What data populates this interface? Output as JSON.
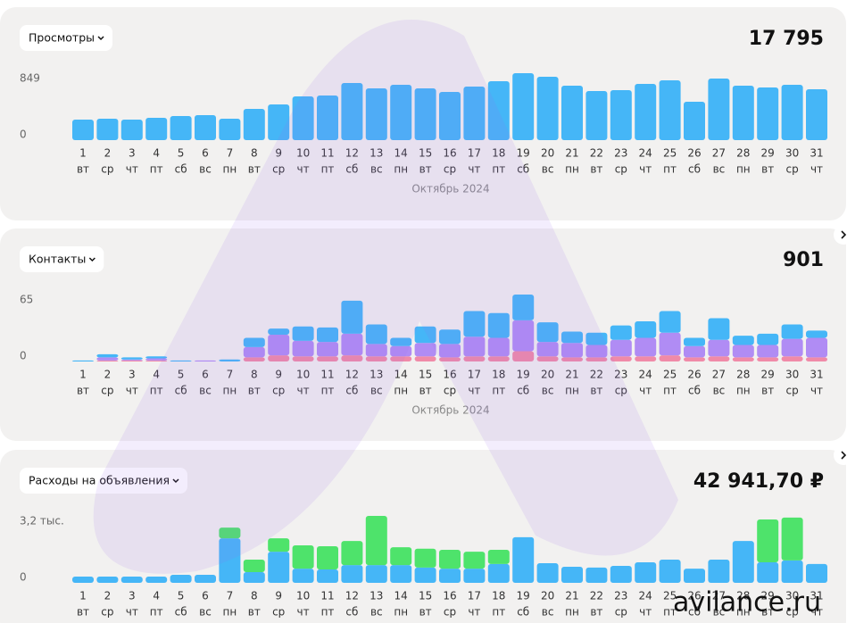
{
  "days": [
    "1",
    "2",
    "3",
    "4",
    "5",
    "6",
    "7",
    "8",
    "9",
    "10",
    "11",
    "12",
    "13",
    "14",
    "15",
    "16",
    "17",
    "18",
    "19",
    "20",
    "21",
    "22",
    "23",
    "24",
    "25",
    "26",
    "27",
    "28",
    "29",
    "30",
    "31"
  ],
  "weekdays": [
    "вт",
    "ср",
    "чт",
    "пт",
    "сб",
    "вс",
    "пн",
    "вт",
    "ср",
    "чт",
    "пт",
    "сб",
    "вс",
    "пн",
    "вт",
    "ср",
    "чт",
    "пт",
    "сб",
    "вс",
    "пн",
    "вт",
    "ср",
    "чт",
    "пт",
    "сб",
    "вс",
    "пн",
    "вт",
    "ср",
    "чт"
  ],
  "watermark": "avilance.ru",
  "panels": [
    {
      "type": "bar",
      "dropdown": "Просмотры",
      "total": "17 795",
      "month": "Октябрь 2024",
      "ylim": [
        0,
        849
      ],
      "yticks": [
        0,
        849
      ],
      "series": [
        {
          "color": "#45b6f7",
          "values": [
            260,
            272,
            260,
            283,
            306,
            317,
            272,
            396,
            453,
            555,
            566,
            724,
            657,
            702,
            657,
            611,
            679,
            747,
            849,
            804,
            690,
            623,
            634,
            713,
            758,
            487,
            781,
            690,
            668,
            702,
            645
          ]
        }
      ]
    },
    {
      "type": "stacked-bar",
      "dropdown": "Контакты",
      "total": "901",
      "month": "Октябрь 2024",
      "ylim": [
        0,
        65
      ],
      "yticks": [
        0,
        65
      ],
      "series": [
        {
          "color": "#f08aa8",
          "values": [
            0,
            1,
            1,
            1,
            0,
            0,
            0,
            4,
            6,
            5,
            5,
            6,
            5,
            5,
            5,
            4,
            5,
            5,
            10,
            5,
            4,
            4,
            5,
            5,
            6,
            4,
            5,
            4,
            4,
            5,
            4
          ]
        },
        {
          "color": "#b08cf4",
          "values": [
            0,
            3,
            1,
            2,
            0,
            1,
            0,
            10,
            20,
            15,
            14,
            21,
            12,
            10,
            13,
            13,
            19,
            18,
            30,
            14,
            14,
            12,
            16,
            18,
            22,
            11,
            16,
            12,
            12,
            17,
            19
          ]
        },
        {
          "color": "#45b6f7",
          "values": [
            1,
            3,
            2,
            2,
            1,
            0,
            2,
            9,
            6,
            14,
            14,
            32,
            19,
            8,
            16,
            14,
            25,
            24,
            25,
            19,
            11,
            12,
            14,
            16,
            21,
            8,
            21,
            9,
            11,
            14,
            7
          ]
        }
      ]
    },
    {
      "type": "stacked-bar",
      "dropdown": "Расходы на объявления",
      "total": "42 941,70 ₽",
      "ylim": [
        0,
        3200
      ],
      "yticks": [
        0,
        {
          "value": 3200,
          "label": "3,2 тыс."
        }
      ],
      "series": [
        {
          "color": "#45b6f7",
          "values": [
            300,
            300,
            300,
            300,
            385,
            385,
            2130,
            510,
            1490,
            680,
            640,
            850,
            850,
            850,
            730,
            680,
            680,
            900,
            2180,
            940,
            770,
            730,
            810,
            980,
            1110,
            680,
            1110,
            2000,
            980,
            1070,
            900
          ]
        },
        {
          "color": "#4ee36b",
          "values": [
            0,
            0,
            0,
            0,
            0,
            0,
            510,
            600,
            640,
            1110,
            1110,
            1150,
            2350,
            850,
            900,
            900,
            810,
            680,
            0,
            0,
            0,
            0,
            0,
            0,
            0,
            0,
            0,
            0,
            2050,
            2050,
            0
          ]
        }
      ]
    }
  ]
}
